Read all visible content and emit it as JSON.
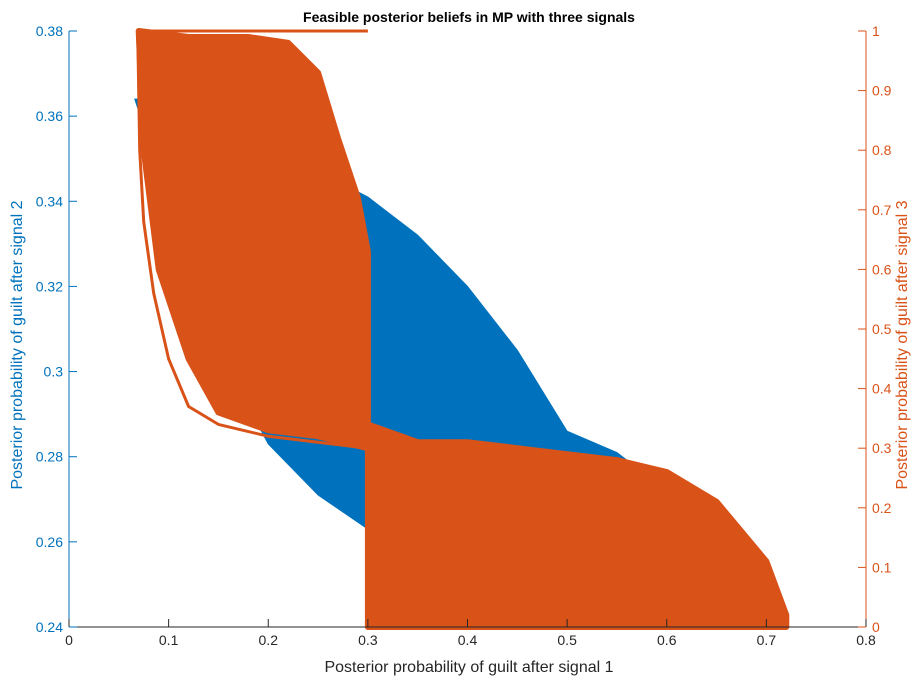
{
  "chart_data": {
    "type": "scatter",
    "title": "Feasible posterior beliefs in MP with three signals",
    "xlabel": "Posterior probability of guilt after signal 1",
    "ylabel_left": "Posterior probability of guilt after signal 2",
    "ylabel_right": "Posterior probability of guilt after signal 3",
    "xlim": [
      0,
      0.8
    ],
    "ylim_left": [
      0.24,
      0.38
    ],
    "ylim_right": [
      0,
      1
    ],
    "x_ticks": [
      "0",
      "0.1",
      "0.2",
      "0.3",
      "0.4",
      "0.5",
      "0.6",
      "0.7",
      "0.8"
    ],
    "y_left_ticks": [
      "0.24",
      "0.26",
      "0.28",
      "0.3",
      "0.32",
      "0.34",
      "0.36",
      "0.38"
    ],
    "y_right_ticks": [
      "0",
      "0.1",
      "0.2",
      "0.3",
      "0.4",
      "0.5",
      "0.6",
      "0.7",
      "0.8",
      "0.9",
      "1"
    ],
    "grid": false,
    "colors": {
      "left": "#0072BD",
      "right": "#D95319"
    },
    "series": [
      {
        "axis": "left",
        "kind": "filled-region",
        "color": "#0072BD",
        "boundary": [
          [
            0.066,
            0.364
          ],
          [
            0.098,
            0.364
          ],
          [
            0.15,
            0.359
          ],
          [
            0.2,
            0.352
          ],
          [
            0.25,
            0.347
          ],
          [
            0.3,
            0.341
          ],
          [
            0.35,
            0.332
          ],
          [
            0.4,
            0.32
          ],
          [
            0.45,
            0.305
          ],
          [
            0.5,
            0.286
          ],
          [
            0.55,
            0.281
          ],
          [
            0.6,
            0.272
          ],
          [
            0.65,
            0.262
          ],
          [
            0.69,
            0.252
          ],
          [
            0.72,
            0.243
          ],
          [
            0.7,
            0.243
          ],
          [
            0.65,
            0.245
          ],
          [
            0.55,
            0.248
          ],
          [
            0.45,
            0.252
          ],
          [
            0.35,
            0.259
          ],
          [
            0.3,
            0.263
          ],
          [
            0.25,
            0.271
          ],
          [
            0.2,
            0.283
          ],
          [
            0.15,
            0.305
          ],
          [
            0.12,
            0.325
          ],
          [
            0.1,
            0.34
          ],
          [
            0.08,
            0.354
          ],
          [
            0.066,
            0.364
          ]
        ]
      },
      {
        "axis": "right",
        "kind": "scatter-cloud",
        "color": "#D95319",
        "upper_boundary": [
          [
            0.07,
            1.0
          ],
          [
            0.12,
            0.99
          ],
          [
            0.18,
            0.99
          ],
          [
            0.22,
            0.98
          ],
          [
            0.25,
            0.93
          ],
          [
            0.27,
            0.82
          ],
          [
            0.29,
            0.72
          ],
          [
            0.3,
            0.63
          ],
          [
            0.3,
            0.34
          ],
          [
            0.35,
            0.31
          ],
          [
            0.4,
            0.31
          ],
          [
            0.45,
            0.3
          ],
          [
            0.5,
            0.29
          ],
          [
            0.55,
            0.28
          ],
          [
            0.6,
            0.26
          ],
          [
            0.65,
            0.21
          ],
          [
            0.7,
            0.11
          ],
          [
            0.72,
            0.02
          ]
        ],
        "lower_boundary": [
          [
            0.07,
            1.0
          ],
          [
            0.075,
            0.8
          ],
          [
            0.09,
            0.6
          ],
          [
            0.12,
            0.45
          ],
          [
            0.15,
            0.36
          ],
          [
            0.2,
            0.33
          ],
          [
            0.25,
            0.32
          ],
          [
            0.3,
            0.3
          ],
          [
            0.3,
            0.0
          ],
          [
            0.35,
            0.0
          ],
          [
            0.72,
            0.0
          ]
        ],
        "scatter_points": [
          [
            0.09,
            0.97
          ],
          [
            0.1,
            0.9
          ],
          [
            0.11,
            0.8
          ],
          [
            0.12,
            0.7
          ],
          [
            0.13,
            0.6
          ],
          [
            0.14,
            0.95
          ],
          [
            0.15,
            0.85
          ],
          [
            0.16,
            0.75
          ],
          [
            0.17,
            0.65
          ],
          [
            0.18,
            0.55
          ],
          [
            0.19,
            0.9
          ],
          [
            0.2,
            0.8
          ],
          [
            0.21,
            0.7
          ],
          [
            0.22,
            0.6
          ],
          [
            0.23,
            0.5
          ],
          [
            0.24,
            0.45
          ],
          [
            0.25,
            0.55
          ],
          [
            0.26,
            0.65
          ],
          [
            0.27,
            0.5
          ],
          [
            0.28,
            0.45
          ],
          [
            0.29,
            0.4
          ],
          [
            0.3,
            0.35
          ],
          [
            0.085,
            0.68
          ],
          [
            0.095,
            0.62
          ],
          [
            0.095,
            0.83
          ],
          [
            0.32,
            0.1
          ],
          [
            0.35,
            0.05
          ],
          [
            0.38,
            0.08
          ],
          [
            0.4,
            0.15
          ],
          [
            0.42,
            0.22
          ],
          [
            0.45,
            0.12
          ],
          [
            0.48,
            0.2
          ],
          [
            0.5,
            0.1
          ],
          [
            0.52,
            0.18
          ],
          [
            0.55,
            0.09
          ],
          [
            0.58,
            0.14
          ],
          [
            0.6,
            0.06
          ],
          [
            0.62,
            0.12
          ],
          [
            0.64,
            0.05
          ],
          [
            0.66,
            0.08
          ],
          [
            0.68,
            0.04
          ],
          [
            0.7,
            0.03
          ],
          [
            0.34,
            0.22
          ],
          [
            0.36,
            0.26
          ],
          [
            0.44,
            0.28
          ],
          [
            0.5,
            0.26
          ],
          [
            0.56,
            0.24
          ],
          [
            0.61,
            0.2
          ],
          [
            0.65,
            0.15
          ],
          [
            0.31,
            0.03
          ],
          [
            0.33,
            0.18
          ],
          [
            0.37,
            0.13
          ],
          [
            0.43,
            0.06
          ],
          [
            0.47,
            0.03
          ],
          [
            0.53,
            0.05
          ],
          [
            0.57,
            0.02
          ],
          [
            0.63,
            0.02
          ],
          [
            0.67,
            0.11
          ],
          [
            0.69,
            0.07
          ],
          [
            0.71,
            0.05
          ]
        ]
      },
      {
        "axis": "right",
        "kind": "line",
        "color": "#D95319",
        "points": [
          [
            0.069,
            1.0
          ],
          [
            0.3,
            1.0
          ]
        ]
      },
      {
        "axis": "right",
        "kind": "line",
        "color": "#D95319",
        "points": [
          [
            0.069,
            1.0
          ],
          [
            0.071,
            0.8
          ],
          [
            0.075,
            0.68
          ],
          [
            0.085,
            0.56
          ],
          [
            0.1,
            0.45
          ],
          [
            0.12,
            0.37
          ],
          [
            0.15,
            0.34
          ],
          [
            0.2,
            0.32
          ],
          [
            0.25,
            0.31
          ],
          [
            0.3,
            0.3
          ],
          [
            0.4,
            0.27
          ],
          [
            0.5,
            0.25
          ],
          [
            0.6,
            0.21
          ],
          [
            0.68,
            0.12
          ],
          [
            0.72,
            0.0
          ]
        ]
      },
      {
        "axis": "right",
        "kind": "line",
        "color": "#D95319",
        "points": [
          [
            0.3,
            0.0
          ],
          [
            0.72,
            0.0
          ]
        ]
      }
    ]
  }
}
